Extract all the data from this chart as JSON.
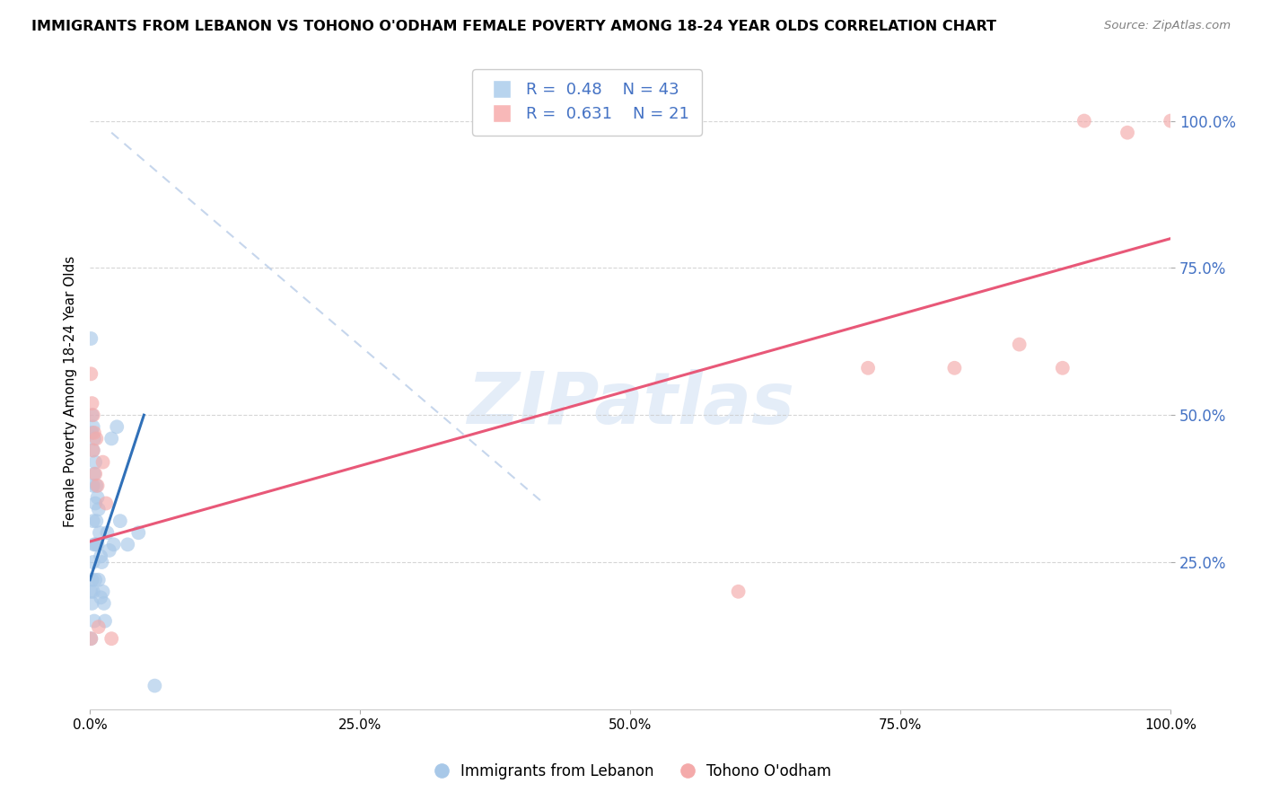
{
  "title": "IMMIGRANTS FROM LEBANON VS TOHONO O'ODHAM FEMALE POVERTY AMONG 18-24 YEAR OLDS CORRELATION CHART",
  "source": "Source: ZipAtlas.com",
  "ylabel": "Female Poverty Among 18-24 Year Olds",
  "xlim": [
    0.0,
    1.0
  ],
  "ylim": [
    0.0,
    1.08
  ],
  "blue_r": 0.48,
  "blue_n": 43,
  "pink_r": 0.631,
  "pink_n": 21,
  "blue_color": "#a8c8e8",
  "pink_color": "#f4aaaa",
  "blue_line_color": "#3070b8",
  "pink_line_color": "#e85878",
  "dash_color": "#b8cce8",
  "watermark": "ZIPatlas",
  "legend_label_blue": "Immigrants from Lebanon",
  "legend_label_pink": "Tohono O'odham",
  "ytick_color": "#4472c4",
  "blue_points_x": [
    0.001,
    0.001,
    0.001,
    0.002,
    0.002,
    0.002,
    0.002,
    0.003,
    0.003,
    0.003,
    0.003,
    0.003,
    0.003,
    0.004,
    0.004,
    0.004,
    0.004,
    0.005,
    0.005,
    0.005,
    0.005,
    0.006,
    0.006,
    0.007,
    0.007,
    0.008,
    0.008,
    0.009,
    0.01,
    0.01,
    0.011,
    0.012,
    0.013,
    0.014,
    0.016,
    0.018,
    0.02,
    0.022,
    0.025,
    0.028,
    0.035,
    0.045,
    0.06
  ],
  "blue_points_y": [
    0.63,
    0.2,
    0.12,
    0.5,
    0.47,
    0.22,
    0.18,
    0.48,
    0.44,
    0.38,
    0.32,
    0.25,
    0.2,
    0.46,
    0.4,
    0.28,
    0.15,
    0.42,
    0.35,
    0.28,
    0.22,
    0.38,
    0.32,
    0.36,
    0.28,
    0.34,
    0.22,
    0.3,
    0.26,
    0.19,
    0.25,
    0.2,
    0.18,
    0.15,
    0.3,
    0.27,
    0.46,
    0.28,
    0.48,
    0.32,
    0.28,
    0.3,
    0.04
  ],
  "pink_points_x": [
    0.001,
    0.001,
    0.002,
    0.003,
    0.003,
    0.004,
    0.005,
    0.006,
    0.007,
    0.008,
    0.012,
    0.015,
    0.02,
    0.6,
    0.72,
    0.8,
    0.86,
    0.9,
    0.92,
    0.96,
    1.0
  ],
  "pink_points_y": [
    0.57,
    0.12,
    0.52,
    0.5,
    0.44,
    0.47,
    0.4,
    0.46,
    0.38,
    0.14,
    0.42,
    0.35,
    0.12,
    0.2,
    0.58,
    0.58,
    0.62,
    0.58,
    1.0,
    0.98,
    1.0
  ],
  "blue_line_x": [
    0.0,
    0.05
  ],
  "blue_line_y": [
    0.22,
    0.5
  ],
  "pink_line_x": [
    0.0,
    1.0
  ],
  "pink_line_y": [
    0.285,
    0.8
  ],
  "dash_line_x": [
    0.02,
    0.42
  ],
  "dash_line_y": [
    0.98,
    0.35
  ]
}
